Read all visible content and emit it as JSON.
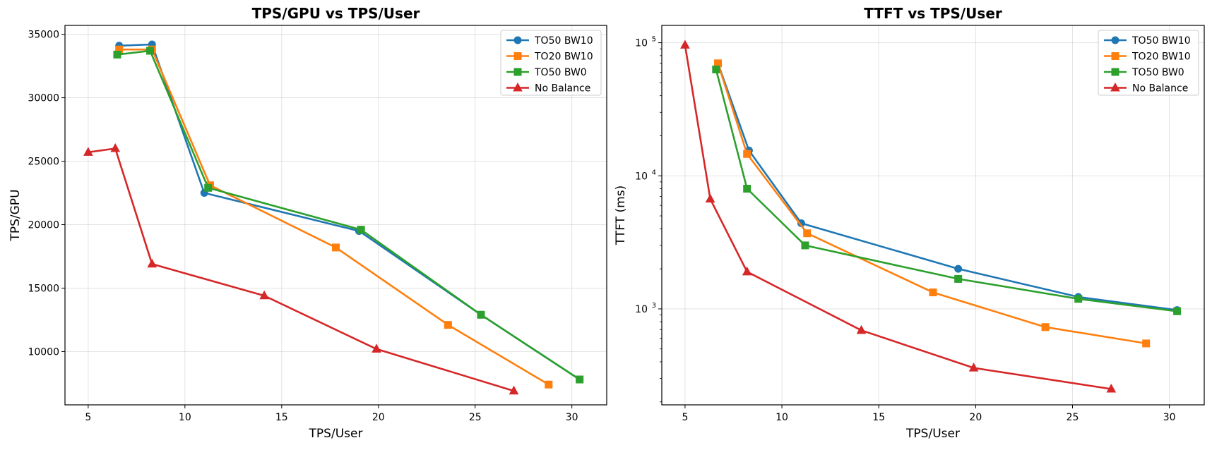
{
  "chart_data": [
    {
      "type": "line",
      "title": "TPS/GPU vs TPS/User",
      "xlabel": "TPS/User",
      "ylabel": "TPS/GPU",
      "xlim": [
        3.8,
        31.8
      ],
      "ylim": [
        5800,
        35700
      ],
      "yscale": "linear",
      "grid": true,
      "legend_position": "top-right",
      "xticks": [
        5,
        10,
        15,
        20,
        25,
        30
      ],
      "xtick_labels": [
        "5",
        "10",
        "15",
        "20",
        "25",
        "30"
      ],
      "yticks": [
        10000,
        15000,
        20000,
        25000,
        30000,
        35000
      ],
      "ytick_labels": [
        "10000",
        "15000",
        "20000",
        "25000",
        "30000",
        "35000"
      ],
      "series": [
        {
          "name": "TO50 BW10",
          "color": "#1f77b4",
          "marker": "circle",
          "x": [
            6.6,
            8.3,
            11.0,
            19.0,
            25.3,
            30.4
          ],
          "y": [
            34100,
            34200,
            22500,
            19500,
            12900,
            7800
          ]
        },
        {
          "name": "TO20 BW10",
          "color": "#ff7f0e",
          "marker": "square",
          "x": [
            6.6,
            8.3,
            11.3,
            17.8,
            23.6,
            28.8
          ],
          "y": [
            33800,
            33800,
            23100,
            18200,
            12100,
            7400
          ]
        },
        {
          "name": "TO50 BW0",
          "color": "#2ca02c",
          "marker": "square",
          "x": [
            6.5,
            8.2,
            11.2,
            19.1,
            25.3,
            30.4
          ],
          "y": [
            33400,
            33700,
            22900,
            19600,
            12900,
            7800
          ]
        },
        {
          "name": "No Balance",
          "color": "#d62728",
          "marker": "triangle",
          "x": [
            5.0,
            6.4,
            8.3,
            14.1,
            19.9,
            27.0
          ],
          "y": [
            25700,
            26000,
            16900,
            14400,
            10200,
            6900
          ]
        }
      ]
    },
    {
      "type": "line",
      "title": "TTFT vs TPS/User",
      "xlabel": "TPS/User",
      "ylabel": "TTFT (ms)",
      "xlim": [
        3.8,
        31.8
      ],
      "ylim": [
        190,
        135000
      ],
      "yscale": "log",
      "grid": true,
      "legend_position": "top-right",
      "xticks": [
        5,
        10,
        15,
        20,
        25,
        30
      ],
      "xtick_labels": [
        "5",
        "10",
        "15",
        "20",
        "25",
        "30"
      ],
      "yticks": [
        1000,
        10000,
        100000
      ],
      "ytick_labels": [
        {
          "base": "10",
          "exp": "3"
        },
        {
          "base": "10",
          "exp": "4"
        },
        {
          "base": "10",
          "exp": "5"
        }
      ],
      "series": [
        {
          "name": "TO50 BW10",
          "color": "#1f77b4",
          "marker": "circle",
          "x": [
            6.7,
            8.3,
            11.0,
            19.1,
            25.3,
            30.4
          ],
          "y": [
            70000,
            15500,
            4400,
            2000,
            1230,
            980
          ]
        },
        {
          "name": "TO20 BW10",
          "color": "#ff7f0e",
          "marker": "square",
          "x": [
            6.7,
            8.2,
            11.3,
            17.8,
            23.6,
            28.8
          ],
          "y": [
            70000,
            14600,
            3700,
            1330,
            730,
            550
          ]
        },
        {
          "name": "TO50 BW0",
          "color": "#2ca02c",
          "marker": "square",
          "x": [
            6.6,
            8.2,
            11.2,
            19.1,
            25.3,
            30.4
          ],
          "y": [
            63000,
            8000,
            3000,
            1680,
            1190,
            960
          ]
        },
        {
          "name": "No Balance",
          "color": "#d62728",
          "marker": "triangle",
          "x": [
            5.0,
            6.3,
            8.2,
            14.1,
            19.9,
            27.0
          ],
          "y": [
            96000,
            6700,
            1900,
            690,
            360,
            250
          ]
        }
      ]
    }
  ]
}
